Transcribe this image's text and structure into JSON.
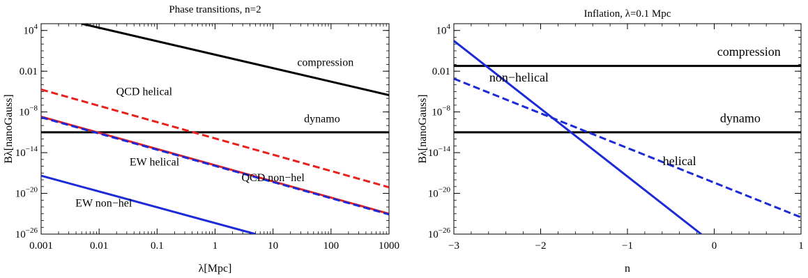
{
  "chart_data": [
    {
      "type": "line",
      "title": "Phase transitions, n=2",
      "xlabel": "λ[Mpc]",
      "ylabel": "Bλ[nanoGauss]",
      "x_scale": "log",
      "y_scale": "log",
      "xlim": [
        0.001,
        1000
      ],
      "ylim": [
        1e-26,
        100000.0
      ],
      "x_ticks": [
        "0.001",
        "0.01",
        "0.1",
        "1",
        "10",
        "100",
        "1000"
      ],
      "y_ticks": [
        {
          "value": 10000.0,
          "label": "10",
          "exp": "4"
        },
        {
          "value": 0.01,
          "label": "0.01",
          "exp": ""
        },
        {
          "value": 1e-08,
          "label": "10",
          "exp": "−8"
        },
        {
          "value": 1e-14,
          "label": "10",
          "exp": "−14"
        },
        {
          "value": 1e-20,
          "label": "10",
          "exp": "−20"
        },
        {
          "value": 1e-26,
          "label": "10",
          "exp": "−26"
        }
      ],
      "series": [
        {
          "color": "#000000",
          "dash": false,
          "x": [
            0.005,
            1000
          ],
          "y": [
            100000.0,
            3e-06
          ]
        },
        {
          "color": "#000000",
          "dash": false,
          "x": [
            0.001,
            1000
          ],
          "y": [
            1e-11,
            1e-11
          ]
        },
        {
          "color": "#e8211d",
          "dash": true,
          "x": [
            0.001,
            1000
          ],
          "y": [
            2e-05,
            8e-20
          ]
        },
        {
          "color": "#e8211d",
          "dash": false,
          "x": [
            0.001,
            1000
          ],
          "y": [
            2e-09,
            1e-23
          ]
        },
        {
          "color": "#1c2bd6",
          "dash": true,
          "x": [
            0.001,
            1000
          ],
          "y": [
            1.6e-09,
            8e-24
          ]
        },
        {
          "color": "#1c2bd6",
          "dash": false,
          "x": [
            0.001,
            5
          ],
          "y": [
            4e-18,
            1e-26
          ]
        }
      ],
      "annotations": [
        {
          "text": "compression",
          "x": 80,
          "y": 0.06
        },
        {
          "text": "QCD helical",
          "x": 0.06,
          "y": 3e-06
        },
        {
          "text": "dynamo",
          "x": 70,
          "y": 3e-10
        },
        {
          "text": "EW helical",
          "x": 0.09,
          "y": 1.3e-16
        },
        {
          "text": "QCD non−hel",
          "x": 10,
          "y": 6e-19
        },
        {
          "text": "EW non−hel",
          "x": 0.012,
          "y": 1.2e-22
        }
      ]
    },
    {
      "type": "line",
      "title": "Inflation, λ=0.1 Mpc",
      "xlabel": "n",
      "ylabel": "Bλ[nanoGauss]",
      "y_scale": "log",
      "xlim": [
        -3,
        1
      ],
      "ylim": [
        1e-26,
        100000.0
      ],
      "x_ticks": [
        "−3",
        "−2",
        "−1",
        "0",
        "1"
      ],
      "y_ticks": [
        {
          "value": 10000.0,
          "label": "10",
          "exp": "4"
        },
        {
          "value": 0.01,
          "label": "0.01",
          "exp": ""
        },
        {
          "value": 1e-08,
          "label": "10",
          "exp": "−8"
        },
        {
          "value": 1e-14,
          "label": "10",
          "exp": "−14"
        },
        {
          "value": 1e-20,
          "label": "10",
          "exp": "−20"
        },
        {
          "value": 1e-26,
          "label": "10",
          "exp": "−26"
        }
      ],
      "series": [
        {
          "color": "#000000",
          "dash": false,
          "x": [
            -3,
            1
          ],
          "y": [
            0.06,
            0.06
          ]
        },
        {
          "color": "#000000",
          "dash": false,
          "x": [
            -3,
            1
          ],
          "y": [
            1e-11,
            1e-11
          ]
        },
        {
          "color": "#1c2bd6",
          "dash": false,
          "x": [
            -3,
            -0.15
          ],
          "y": [
            300,
            1e-26
          ]
        },
        {
          "color": "#1c2bd6",
          "dash": true,
          "x": [
            -3,
            1
          ],
          "y": [
            0.0008,
            3e-24
          ]
        }
      ],
      "annotations": [
        {
          "text": "compression",
          "x": 0.4,
          "y": 2
        },
        {
          "text": "non−helical",
          "x": -2.25,
          "y": 0.0003
        },
        {
          "text": "dynamo",
          "x": 0.3,
          "y": 3e-10
        },
        {
          "text": "helical",
          "x": -0.4,
          "y": 1.5e-16
        }
      ]
    }
  ]
}
